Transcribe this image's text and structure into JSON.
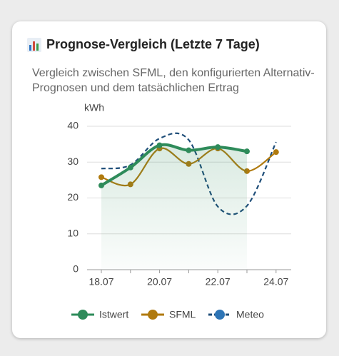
{
  "chart_data": {
    "type": "line",
    "title": "Prognose-Vergleich (Letzte 7 Tage)",
    "subtitle": "Vergleich zwischen SFML, den konfigurierten Alternativ-Prognosen und dem tatsächlichen Ertrag",
    "y_label": "kWh",
    "categories": [
      "18.07",
      null,
      "20.07",
      null,
      "22.07",
      null,
      "24.07"
    ],
    "series": [
      {
        "name": "Istwert",
        "color": "#2e8b5a",
        "values": [
          23.5,
          28.5,
          34.7,
          33.3,
          34.2,
          33,
          null
        ],
        "area": true,
        "markers": true,
        "dashed": false
      },
      {
        "name": "SFML",
        "color": "#b07a0e",
        "values": [
          25.8,
          23.8,
          33.8,
          29.5,
          33.8,
          27.5,
          32.8
        ],
        "markers": true,
        "dashed": false
      },
      {
        "name": "Meteo",
        "color": "#1f4e79",
        "values": [
          28.2,
          29.2,
          36.6,
          36.2,
          17.6,
          17.8,
          35.6
        ],
        "markers": false,
        "dashed": true
      }
    ],
    "ylim": [
      0,
      40
    ],
    "yticks": [
      0,
      10,
      20,
      30,
      40
    ],
    "grid": true,
    "legend": "bottom"
  }
}
